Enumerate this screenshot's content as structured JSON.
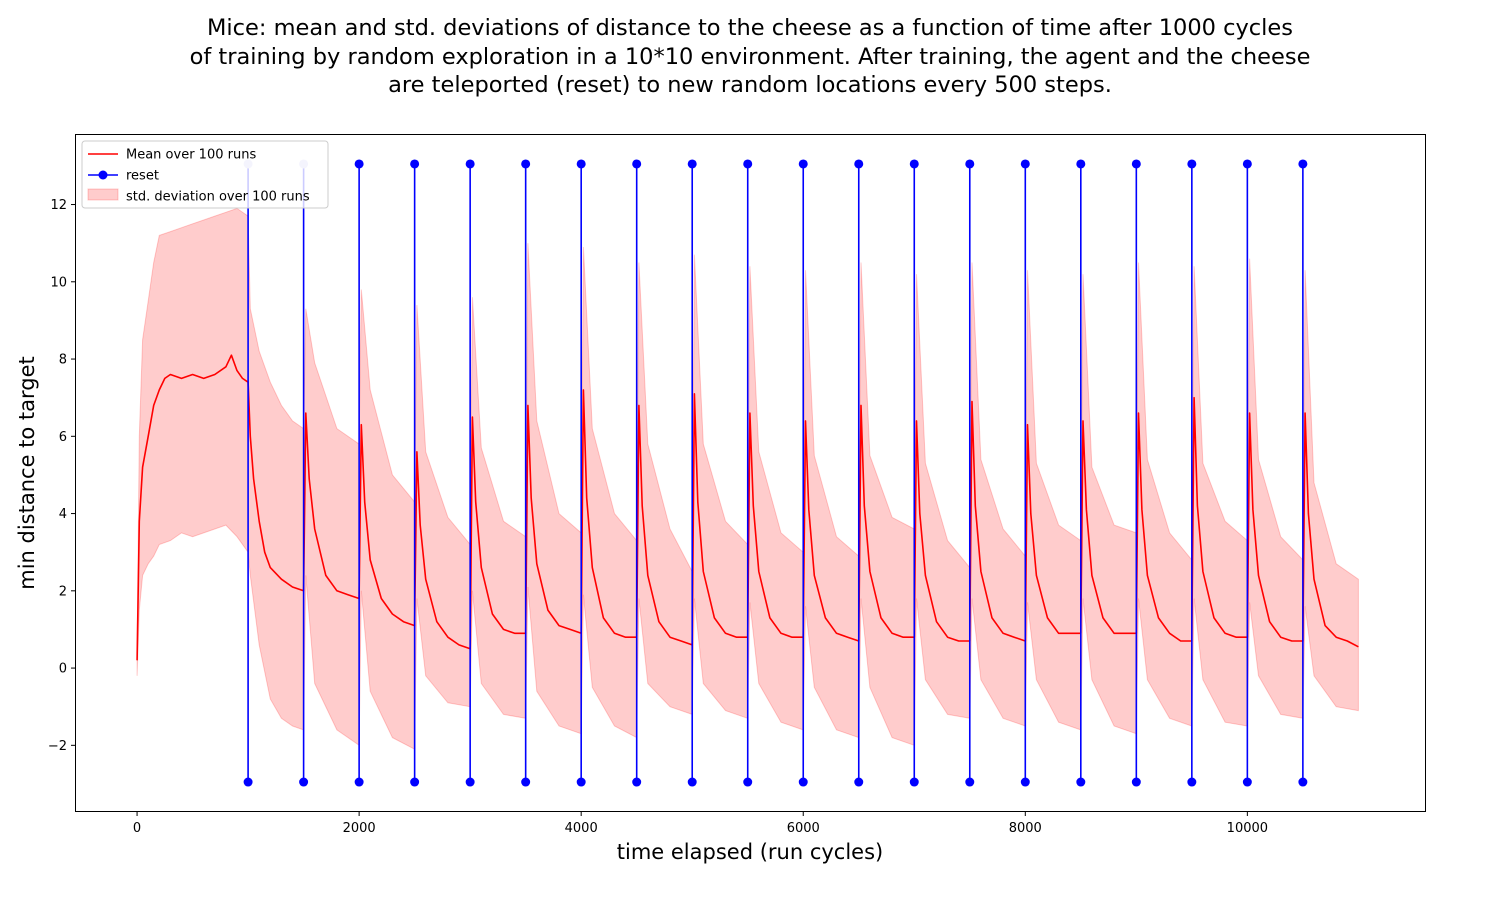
{
  "figure": {
    "title_lines": [
      "Mice: mean and std. deviations of distance to the cheese as a function of time after 1000 cycles",
      "of training by random exploration in a 10*10 environment. After training, the agent and the cheese",
      "are teleported (reset) to new random locations every 500 steps."
    ]
  },
  "chart_data": {
    "type": "line",
    "title": "Mice: mean and std. deviations of distance to the cheese as a function of time after 1000 cycles of training by random exploration in a 10*10 environment. After training, the agent and the cheese are teleported (reset) to new random locations every 500 steps.",
    "xlabel": "time elapsed (run cycles)",
    "ylabel": "min distance to target",
    "xlim": [
      -550,
      11600
    ],
    "ylim": [
      -3.7,
      13.8
    ],
    "xticks": [
      0,
      2000,
      4000,
      6000,
      8000,
      10000
    ],
    "xtick_labels": [
      "0",
      "2000",
      "4000",
      "6000",
      "8000",
      "10000"
    ],
    "yticks": [
      -2,
      0,
      2,
      4,
      6,
      8,
      10,
      12
    ],
    "ytick_labels": [
      "−2",
      "0",
      "2",
      "4",
      "6",
      "8",
      "10",
      "12"
    ],
    "grid": false,
    "legend_position": "upper left",
    "colors": {
      "mean": "#ff0000",
      "reset": "#0000ff",
      "std_fill": "#ff0000"
    },
    "series": [
      {
        "name": "Mean over 100 runs",
        "style": "line",
        "x": [
          0,
          20,
          50,
          100,
          150,
          200,
          250,
          300,
          400,
          500,
          600,
          700,
          800,
          850,
          900,
          950,
          1000,
          1020,
          1050,
          1100,
          1150,
          1200,
          1300,
          1400,
          1500,
          1520,
          1550,
          1600,
          1700,
          1800,
          1900,
          2000,
          2020,
          2050,
          2100,
          2200,
          2300,
          2400,
          2500,
          2520,
          2550,
          2600,
          2700,
          2800,
          2900,
          3000,
          3020,
          3050,
          3100,
          3200,
          3300,
          3400,
          3500,
          3520,
          3550,
          3600,
          3700,
          3800,
          3900,
          4000,
          4020,
          4050,
          4100,
          4200,
          4300,
          4400,
          4500,
          4520,
          4550,
          4600,
          4700,
          4800,
          4900,
          5000,
          5020,
          5050,
          5100,
          5200,
          5300,
          5400,
          5500,
          5520,
          5550,
          5600,
          5700,
          5800,
          5900,
          6000,
          6020,
          6050,
          6100,
          6200,
          6300,
          6400,
          6500,
          6520,
          6550,
          6600,
          6700,
          6800,
          6900,
          7000,
          7020,
          7050,
          7100,
          7200,
          7300,
          7400,
          7500,
          7520,
          7550,
          7600,
          7700,
          7800,
          7900,
          8000,
          8020,
          8050,
          8100,
          8200,
          8300,
          8400,
          8500,
          8520,
          8550,
          8600,
          8700,
          8800,
          8900,
          9000,
          9020,
          9050,
          9100,
          9200,
          9300,
          9400,
          9500,
          9520,
          9550,
          9600,
          9700,
          9800,
          9900,
          10000,
          10020,
          10050,
          10100,
          10200,
          10300,
          10400,
          10500,
          10520,
          10550,
          10600,
          10700,
          10800,
          10900,
          11000
        ],
        "y": [
          0.2,
          3.8,
          5.2,
          6.0,
          6.8,
          7.2,
          7.5,
          7.6,
          7.5,
          7.6,
          7.5,
          7.6,
          7.8,
          8.1,
          7.7,
          7.5,
          7.4,
          6.0,
          4.9,
          3.8,
          3.0,
          2.6,
          2.3,
          2.1,
          2.0,
          6.6,
          4.9,
          3.6,
          2.4,
          2.0,
          1.9,
          1.8,
          6.3,
          4.3,
          2.8,
          1.8,
          1.4,
          1.2,
          1.1,
          5.6,
          3.7,
          2.3,
          1.2,
          0.8,
          0.6,
          0.5,
          6.5,
          4.3,
          2.6,
          1.4,
          1.0,
          0.9,
          0.9,
          6.8,
          4.4,
          2.7,
          1.5,
          1.1,
          1.0,
          0.9,
          7.2,
          4.4,
          2.6,
          1.3,
          0.9,
          0.8,
          0.8,
          6.8,
          4.2,
          2.4,
          1.2,
          0.8,
          0.7,
          0.6,
          7.1,
          4.3,
          2.5,
          1.3,
          0.9,
          0.8,
          0.8,
          6.6,
          4.2,
          2.5,
          1.3,
          0.9,
          0.8,
          0.8,
          6.4,
          4.1,
          2.4,
          1.3,
          0.9,
          0.8,
          0.7,
          6.8,
          4.2,
          2.5,
          1.3,
          0.9,
          0.8,
          0.8,
          6.4,
          4.0,
          2.4,
          1.2,
          0.8,
          0.7,
          0.7,
          6.9,
          4.2,
          2.5,
          1.3,
          0.9,
          0.8,
          0.7,
          6.3,
          4.0,
          2.4,
          1.3,
          0.9,
          0.9,
          0.9,
          6.4,
          4.1,
          2.4,
          1.3,
          0.9,
          0.9,
          0.9,
          6.6,
          4.1,
          2.4,
          1.3,
          0.9,
          0.7,
          0.7,
          7.0,
          4.2,
          2.5,
          1.3,
          0.9,
          0.8,
          0.8,
          6.6,
          4.1,
          2.4,
          1.2,
          0.8,
          0.7,
          0.7,
          6.6,
          4.0,
          2.3,
          1.1,
          0.8,
          0.7,
          0.55
        ]
      },
      {
        "name": "reset",
        "style": "stem",
        "x": [
          1000,
          1500,
          2000,
          2500,
          3000,
          3500,
          4000,
          4500,
          5000,
          5500,
          6000,
          6500,
          7000,
          7500,
          8000,
          8500,
          9000,
          9500,
          10000,
          10500
        ],
        "y_top": 13.05,
        "y_bottom": -2.95
      },
      {
        "name": "std. deviation over 100 runs",
        "style": "band",
        "x": [
          0,
          20,
          50,
          100,
          150,
          200,
          300,
          400,
          500,
          600,
          700,
          800,
          900,
          1000,
          1020,
          1100,
          1200,
          1300,
          1400,
          1500,
          1520,
          1600,
          1800,
          2000,
          2020,
          2100,
          2300,
          2500,
          2520,
          2600,
          2800,
          3000,
          3020,
          3100,
          3300,
          3500,
          3520,
          3600,
          3800,
          4000,
          4020,
          4100,
          4300,
          4500,
          4520,
          4600,
          4800,
          5000,
          5020,
          5100,
          5300,
          5500,
          5520,
          5600,
          5800,
          6000,
          6020,
          6100,
          6300,
          6500,
          6520,
          6600,
          6800,
          7000,
          7020,
          7100,
          7300,
          7500,
          7520,
          7600,
          7800,
          8000,
          8020,
          8100,
          8300,
          8500,
          8520,
          8600,
          8800,
          9000,
          9020,
          9100,
          9300,
          9500,
          9520,
          9600,
          9800,
          10000,
          10020,
          10100,
          10300,
          10500,
          10520,
          10600,
          10800,
          11000
        ],
        "upper": [
          0.5,
          6.0,
          8.5,
          9.5,
          10.5,
          11.2,
          11.3,
          11.4,
          11.5,
          11.6,
          11.7,
          11.8,
          11.9,
          11.7,
          9.3,
          8.2,
          7.4,
          6.8,
          6.4,
          6.2,
          9.3,
          7.9,
          6.2,
          5.8,
          9.8,
          7.2,
          5.0,
          4.3,
          9.4,
          5.6,
          3.9,
          3.2,
          9.6,
          5.7,
          3.8,
          3.4,
          11.0,
          6.4,
          4.0,
          3.5,
          10.9,
          6.2,
          4.0,
          3.3,
          10.5,
          5.8,
          3.6,
          2.5,
          10.7,
          5.8,
          3.8,
          3.2,
          10.4,
          5.6,
          3.5,
          3.0,
          10.3,
          5.5,
          3.4,
          2.9,
          10.5,
          5.5,
          3.9,
          3.6,
          10.2,
          5.3,
          3.3,
          2.6,
          10.5,
          5.4,
          3.6,
          2.9,
          10.3,
          5.3,
          3.7,
          3.3,
          10.2,
          5.2,
          3.7,
          3.5,
          10.5,
          5.4,
          3.5,
          2.8,
          10.4,
          5.3,
          3.8,
          3.3,
          10.6,
          5.4,
          3.4,
          2.8,
          10.3,
          4.8,
          2.7,
          2.3
        ],
        "lower": [
          -0.2,
          1.5,
          2.4,
          2.7,
          2.9,
          3.2,
          3.3,
          3.5,
          3.4,
          3.5,
          3.6,
          3.7,
          3.4,
          3.0,
          2.4,
          0.6,
          -0.8,
          -1.3,
          -1.5,
          -1.6,
          2.4,
          -0.4,
          -1.6,
          -2.0,
          2.0,
          -0.6,
          -1.8,
          -2.1,
          1.8,
          -0.2,
          -0.9,
          -1.0,
          2.0,
          -0.4,
          -1.2,
          -1.3,
          2.1,
          -0.6,
          -1.5,
          -1.7,
          1.9,
          -0.5,
          -1.5,
          -1.8,
          1.8,
          -0.4,
          -1.0,
          -1.2,
          1.8,
          -0.4,
          -1.1,
          -1.3,
          1.7,
          -0.4,
          -1.4,
          -1.6,
          1.6,
          -0.5,
          -1.6,
          -1.8,
          1.8,
          -0.5,
          -1.8,
          -2.0,
          1.8,
          -0.3,
          -1.2,
          -1.3,
          1.8,
          -0.3,
          -1.3,
          -1.5,
          1.7,
          -0.3,
          -1.4,
          -1.6,
          1.8,
          -0.3,
          -1.5,
          -1.7,
          1.8,
          -0.3,
          -1.3,
          -1.5,
          1.8,
          -0.3,
          -1.4,
          -1.5,
          1.7,
          -0.2,
          -1.2,
          -1.3,
          1.6,
          -0.2,
          -1.0,
          -1.1
        ]
      }
    ]
  }
}
